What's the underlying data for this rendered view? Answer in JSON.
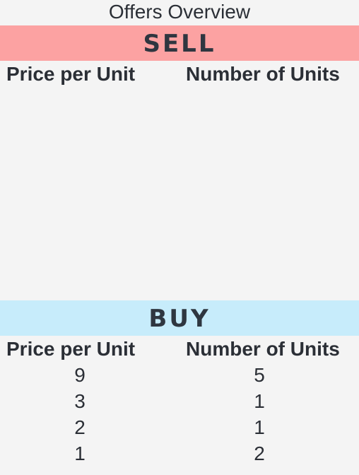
{
  "title": "Offers Overview",
  "sell": {
    "label": "SELL",
    "color": "#fca2a2",
    "columns": [
      "Price per Unit",
      "Number of Units"
    ],
    "rows": []
  },
  "buy": {
    "label": "BUY",
    "color": "#c7ecfb",
    "columns": [
      "Price per Unit",
      "Number of Units"
    ],
    "rows": [
      {
        "price": "9",
        "units": "5"
      },
      {
        "price": "3",
        "units": "1"
      },
      {
        "price": "2",
        "units": "1"
      },
      {
        "price": "1",
        "units": "2"
      }
    ]
  }
}
